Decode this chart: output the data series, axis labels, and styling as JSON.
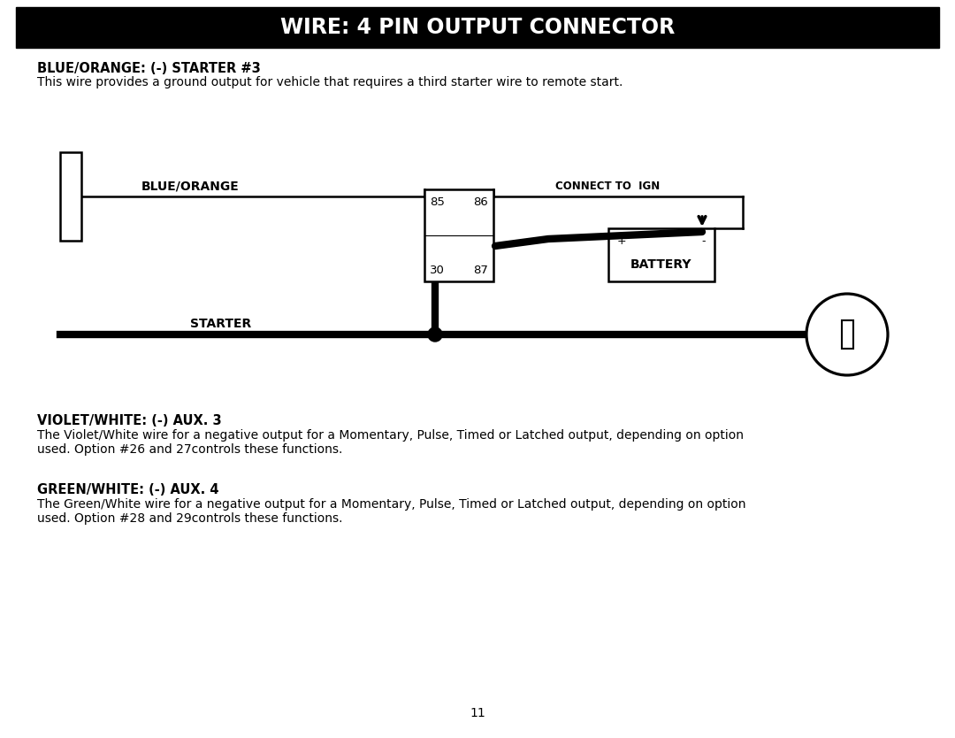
{
  "title": "WIRE: 4 PIN OUTPUT CONNECTOR",
  "title_bg": "#000000",
  "title_color": "#ffffff",
  "bg_color": "#ffffff",
  "text_color": "#000000",
  "section1_heading": "BLUE/ORANGE: (-) STARTER #3",
  "section1_body": "This wire provides a ground output for vehicle that requires a third starter wire to remote start.",
  "section2_heading": "VIOLET/WHITE: (-) AUX. 3",
  "section2_body": "The Violet/White wire for a negative output for a Momentary, Pulse, Timed or Latched output, depending on option\nused. Option #26 and 27controls these functions.",
  "section3_heading": "GREEN/WHITE: (-) AUX. 4",
  "section3_body": "The Green/White wire for a negative output for a Momentary, Pulse, Timed or Latched output, depending on option\nused. Option #28 and 29controls these functions.",
  "page_number": "11",
  "diagram": {
    "blue_orange_label": "BLUE/ORANGE",
    "connect_ign_label": "CONNECT TO  IGN",
    "starter_label": "STARTER",
    "battery_label": "BATTERY",
    "relay_labels": [
      "85",
      "86",
      "30",
      "87"
    ]
  }
}
